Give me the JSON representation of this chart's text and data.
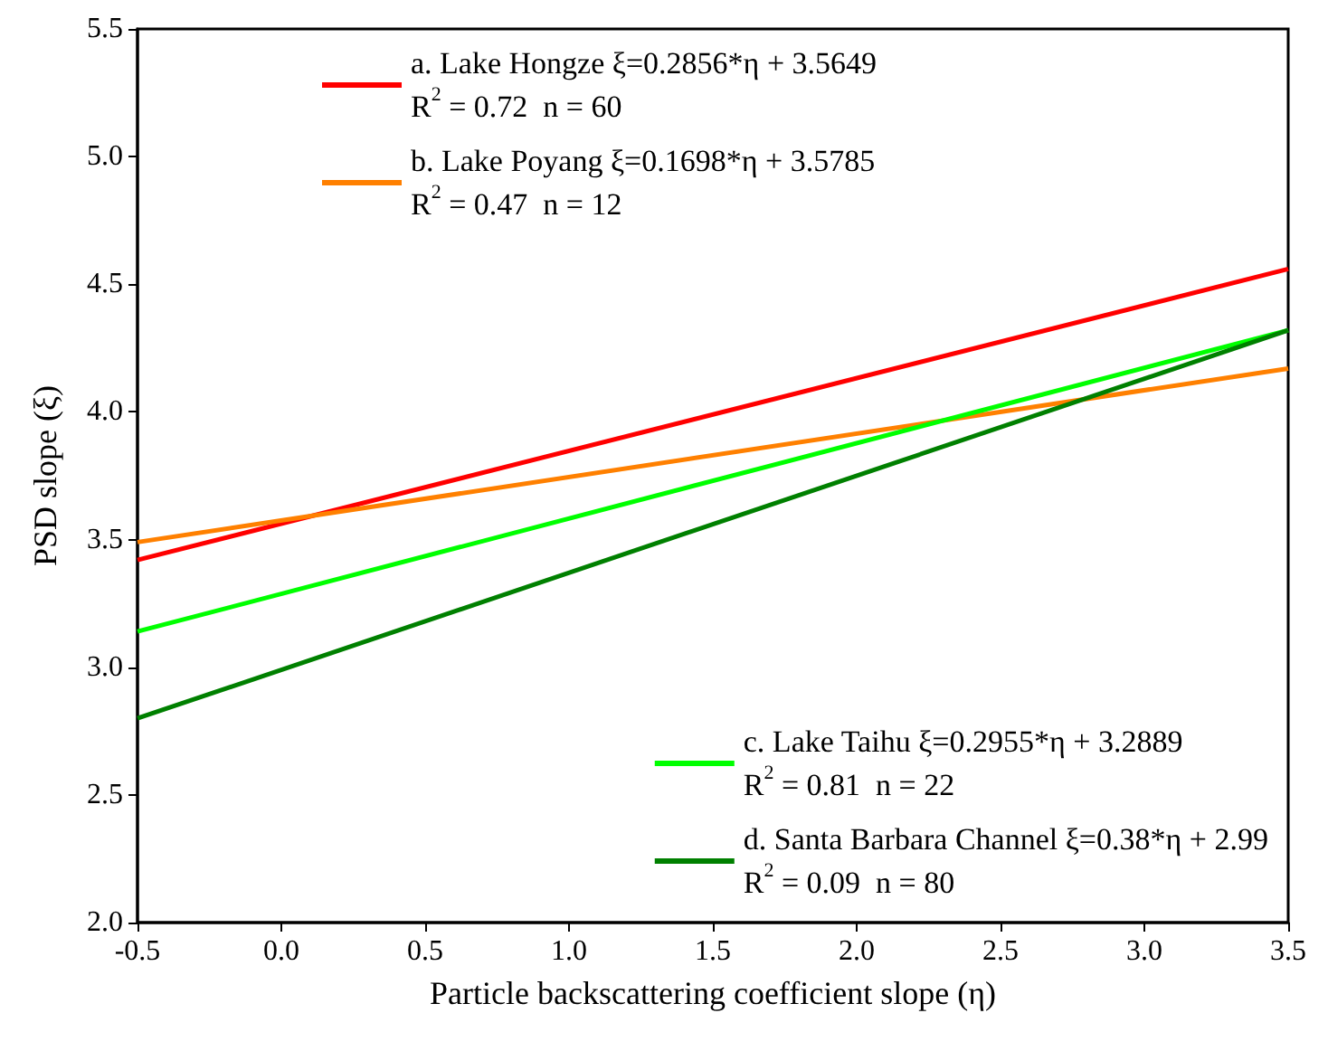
{
  "chart_data": {
    "type": "line",
    "xlabel": "Particle backscattering coefficient slope (η)",
    "ylabel": "PSD slope (ξ)",
    "x": [
      -0.5,
      3.5
    ],
    "series": [
      {
        "name": "a. Lake Hongze ξ=0.2856*η + 3.5649\nR$^{2}$ = 0.72  n = 60",
        "color": "#ff0000",
        "values": [
          3.42,
          4.56
        ]
      },
      {
        "name": "b. Lake Poyang ξ=0.1698*η + 3.5785\nR$^{2}$ = 0.47  n = 12",
        "color": "#ff8000",
        "values": [
          3.49,
          4.17
        ]
      },
      {
        "name": "c. Lake Taihu ξ=0.2955*η + 3.2889\nR$^{2}$ = 0.81  n = 22",
        "color": "#00ff00",
        "values": [
          3.14,
          4.32
        ]
      },
      {
        "name": "d. Santa Barbara Channel ξ=0.38*η + 2.99\nR$^{2}$ = 0.09  n = 80",
        "color": "#008000",
        "values": [
          2.8,
          4.32
        ]
      }
    ],
    "xlim": [
      -0.5,
      3.5
    ],
    "xticks": [
      -0.5,
      {
        "value": 0,
        "label": "0.0"
      },
      0.5,
      {
        "value": 1,
        "label": "1.0"
      },
      1.5,
      {
        "value": 2,
        "label": "2.0"
      },
      2.5,
      {
        "value": 3,
        "label": "3.0"
      },
      3.5
    ],
    "ylim": [
      2,
      5.5
    ],
    "yticks": [
      {
        "value": 2,
        "label": "2.0"
      },
      2.5,
      {
        "value": 3,
        "label": "3.0"
      },
      3.5,
      {
        "value": 4,
        "label": "4.0"
      },
      4.5,
      {
        "value": 5,
        "label": "5.0"
      },
      5.5
    ],
    "legend": "top",
    "grid": false,
    "marker": "none",
    "line_style": "solid"
  }
}
